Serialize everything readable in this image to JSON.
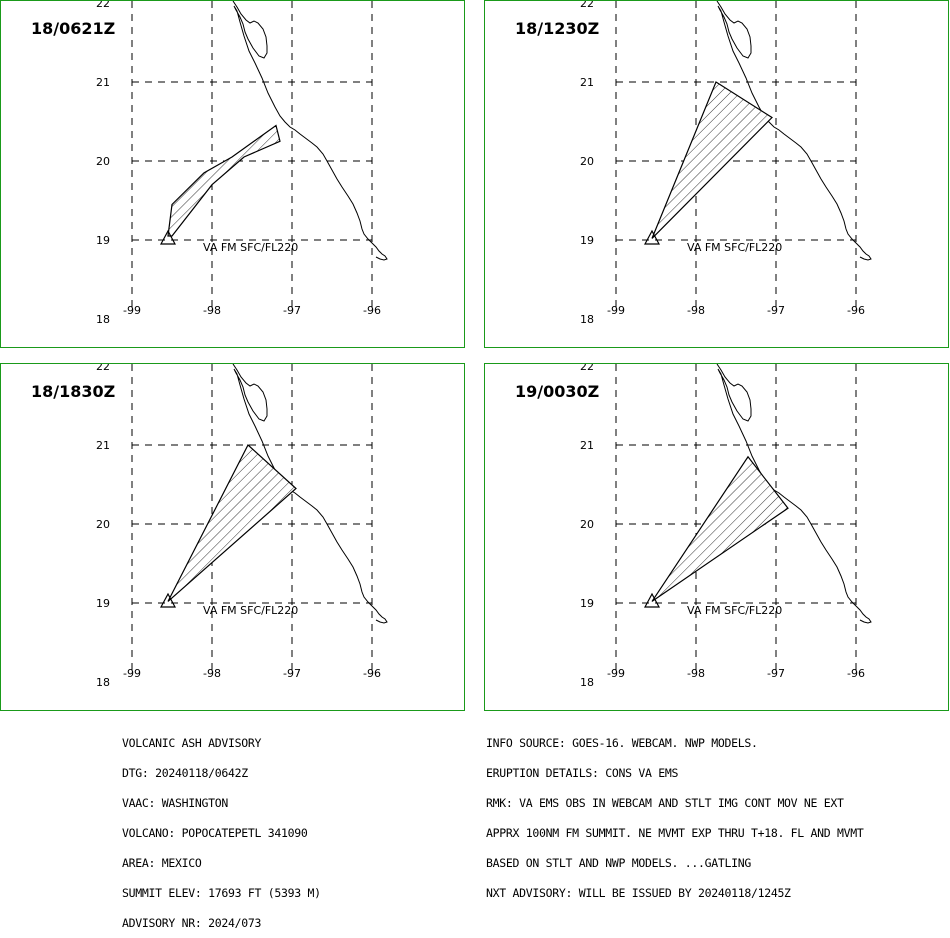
{
  "panels": [
    {
      "title": "18/0621Z",
      "plume_label": "VA FM SFC/FL220",
      "plume": [
        [
          -98.55,
          19.05
        ],
        [
          -98.5,
          19.45
        ],
        [
          -98.1,
          19.85
        ],
        [
          -97.75,
          20.05
        ],
        [
          -97.2,
          20.45
        ],
        [
          -97.15,
          20.25
        ],
        [
          -97.6,
          20.05
        ],
        [
          -98.0,
          19.7
        ],
        [
          -98.5,
          19.05
        ]
      ]
    },
    {
      "title": "18/1230Z",
      "plume_label": "VA FM SFC/FL220",
      "plume": [
        [
          -98.55,
          19.02
        ],
        [
          -97.75,
          21.0
        ],
        [
          -97.05,
          20.55
        ]
      ]
    },
    {
      "title": "18/1830Z",
      "plume_label": "VA FM SFC/FL220",
      "plume": [
        [
          -98.55,
          19.02
        ],
        [
          -97.55,
          21.0
        ],
        [
          -96.95,
          20.45
        ]
      ]
    },
    {
      "title": "19/0030Z",
      "plume_label": "VA FM SFC/FL220",
      "plume": [
        [
          -98.55,
          19.02
        ],
        [
          -97.35,
          20.85
        ],
        [
          -96.85,
          20.2
        ]
      ]
    }
  ],
  "axes": {
    "x_ticks": [
      {
        "v": -99,
        "label": "-99"
      },
      {
        "v": -98,
        "label": "-98"
      },
      {
        "v": -97,
        "label": "-97"
      },
      {
        "v": -96,
        "label": "-96"
      }
    ],
    "y_ticks": [
      {
        "v": 22,
        "label": "22"
      },
      {
        "v": 21,
        "label": "21"
      },
      {
        "v": 20,
        "label": "20"
      },
      {
        "v": 19,
        "label": "19"
      },
      {
        "v": 18,
        "label": "18"
      }
    ]
  },
  "volcano_position": [
    -98.55,
    19.0
  ],
  "advisory_left": [
    "VOLCANIC ASH ADVISORY",
    "DTG: 20240118/0642Z",
    "VAAC: WASHINGTON",
    "VOLCANO: POPOCATEPETL 341090",
    "AREA: MEXICO",
    "SUMMIT ELEV: 17693 FT (5393 M)",
    "ADVISORY NR: 2024/073"
  ],
  "advisory_right": [
    "INFO SOURCE: GOES-16. WEBCAM. NWP MODELS.",
    "ERUPTION DETAILS: CONS VA EMS",
    "RMK: VA EMS OBS IN WEBCAM AND STLT IMG CONT MOV NE EXT",
    "APPRX 100NM FM SUMMIT. NE MVMT EXP THRU T+18. FL AND MVMT",
    "BASED ON STLT AND NWP MODELS. ...GATLING",
    "NXT ADVISORY: WILL BE ISSUED BY 20240118/1245Z"
  ],
  "colors": {
    "panel_border": "#1a9a1a",
    "lines": "#000000"
  }
}
